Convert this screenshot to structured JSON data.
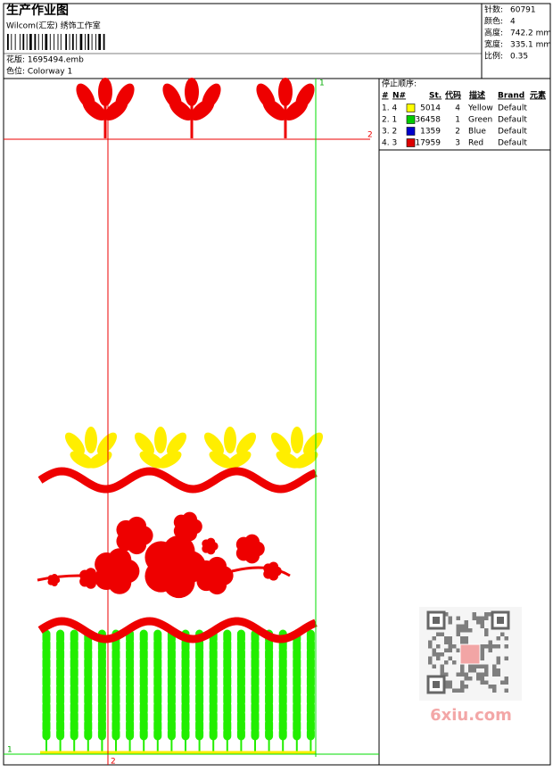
{
  "header": {
    "title": "生产作业图",
    "studio": "Wilcom(汇宏) 绣饰工作室",
    "design_label": "花版: 1695494.emb",
    "colorway_label": "色位: Colorway 1"
  },
  "info": [
    {
      "label": "针数:",
      "value": "60791"
    },
    {
      "label": "颜色:",
      "value": "4"
    },
    {
      "label": "高度:",
      "value": "742.2 mm"
    },
    {
      "label": "宽度:",
      "value": "335.1 mm"
    },
    {
      "label": "比例:",
      "value": "0.35"
    }
  ],
  "table": {
    "title": "停止顺序:",
    "headers": [
      "#",
      "N#",
      "St.",
      "代码",
      "描述",
      "Brand",
      "元素"
    ],
    "rows": [
      {
        "seq": "1. 4",
        "color": "#ffff00",
        "stitches": "5014",
        "code": "4",
        "desc": "Yellow",
        "brand": "Default"
      },
      {
        "seq": "2. 1",
        "color": "#00cc00",
        "stitches": "36458",
        "code": "1",
        "desc": "Green",
        "brand": "Default"
      },
      {
        "seq": "3. 2",
        "color": "#0000cc",
        "stitches": "1359",
        "code": "2",
        "desc": "Blue",
        "brand": "Default"
      },
      {
        "seq": "4. 3",
        "color": "#dd0000",
        "stitches": "17959",
        "code": "3",
        "desc": "Red",
        "brand": "Default"
      }
    ]
  },
  "guides": {
    "top_right": "1",
    "right": "2",
    "bottom_left": "1",
    "bottom": "2"
  },
  "watermark": "6xiu.com"
}
